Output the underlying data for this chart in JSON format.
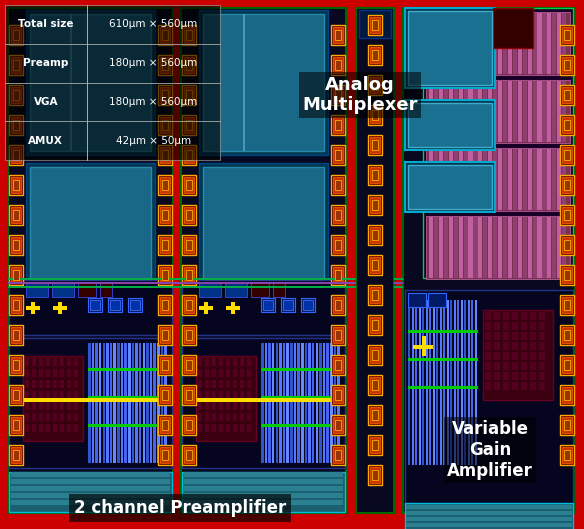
{
  "bg_color": "#CC0000",
  "fig_width": 5.84,
  "fig_height": 5.29,
  "table_data": [
    [
      "Total size",
      "610μm × 560μm"
    ],
    [
      "Preamp",
      "180μm × 560μm"
    ],
    [
      "VGA",
      "180μm × 560μm"
    ],
    [
      "AMUX",
      "42μm × 50μm"
    ]
  ],
  "label_preamp": "2 channel Preamplifier",
  "label_vga": "Variable\nGain\nAmplifier",
  "label_amux": "Analog\nMultiplexer"
}
